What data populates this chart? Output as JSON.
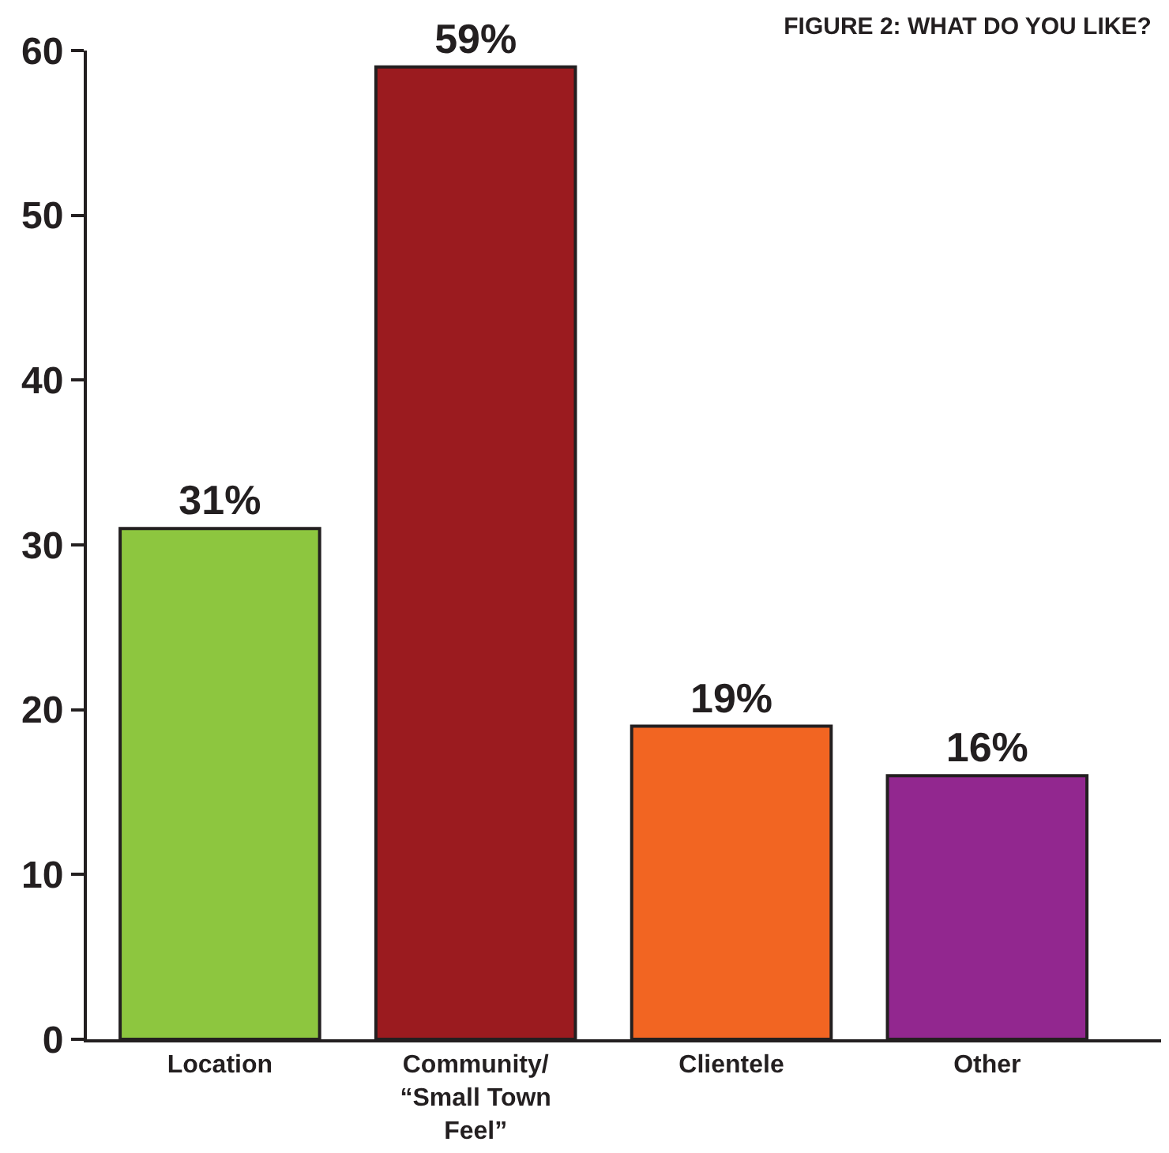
{
  "chart_data": {
    "type": "bar",
    "title": "FIGURE 2: WHAT DO YOU LIKE?",
    "categories": [
      "Location",
      "Community/\n“Small Town\nFeel”",
      "Clientele",
      "Other"
    ],
    "values": [
      31,
      59,
      19,
      16
    ],
    "colors": [
      "#8dc63f",
      "#9b1b1f",
      "#f26522",
      "#92278f"
    ],
    "value_labels": [
      "31%",
      "59%",
      "19%",
      "16%"
    ],
    "ylim": [
      0,
      60
    ],
    "yticks": [
      0,
      10,
      20,
      30,
      40,
      50,
      60
    ],
    "legend": false
  }
}
